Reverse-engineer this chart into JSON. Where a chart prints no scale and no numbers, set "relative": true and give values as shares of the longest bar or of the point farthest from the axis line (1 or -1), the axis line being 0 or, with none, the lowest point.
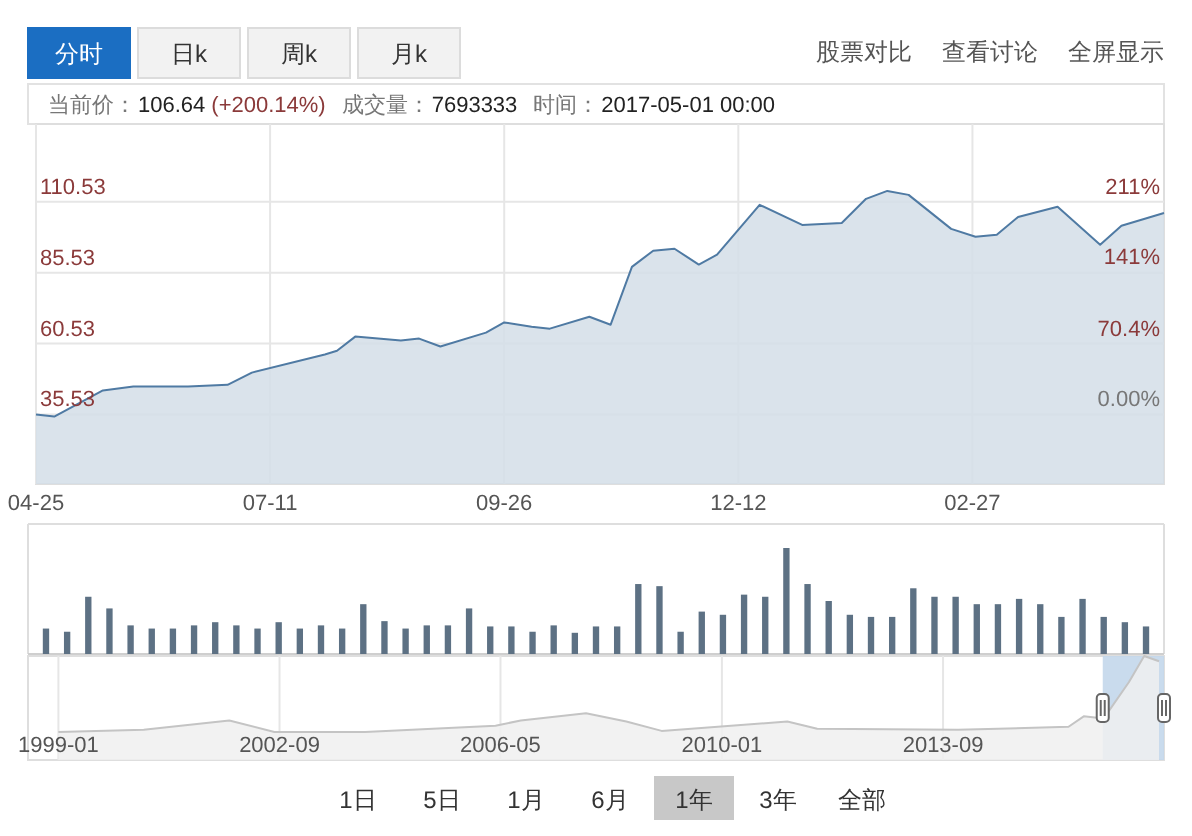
{
  "chart_data": [
    {
      "type": "other",
      "annotations": [
        "分时",
        "日k",
        "周k",
        "月k",
        "股票对比",
        "查看讨论",
        "全屏显示",
        "当前价：",
        "106.64",
        "(+200.14%)",
        "成交量：",
        "7693333",
        "时间：",
        "2017-05-01 00:00"
      ]
    },
    {
      "type": "area",
      "grid": true,
      "x": [
        "2016-04-25",
        "2016-05-01",
        "2016-05-17",
        "2016-05-27",
        "2016-06-14",
        "2016-06-27",
        "2016-07-05",
        "2016-07-29",
        "2016-08-02",
        "2016-08-08",
        "2016-08-23",
        "2016-08-29",
        "2016-09-05",
        "2016-09-20",
        "2016-09-26",
        "2016-10-05",
        "2016-10-11",
        "2016-10-24",
        "2016-10-31",
        "2016-11-07",
        "2016-11-14",
        "2016-11-21",
        "2016-11-29",
        "2016-12-05",
        "2016-12-19",
        "2017-01-02",
        "2017-01-15",
        "2017-01-23",
        "2017-01-30",
        "2017-02-06",
        "2017-02-20",
        "2017-02-28",
        "2017-03-07",
        "2017-03-14",
        "2017-03-27",
        "2017-04-10",
        "2017-04-17",
        "2017-05-01"
      ],
      "series": [
        {
          "color": "#4f7aa3",
          "values": [
            35.5,
            34.8,
            44,
            45.4,
            45.4,
            46,
            50.3,
            56.7,
            58,
            63,
            61.6,
            62.3,
            59.5,
            64.4,
            68,
            66.5,
            65.8,
            70,
            67.2,
            87.6,
            93.3,
            94,
            88.4,
            91.9,
            109.5,
            102.4,
            103.1,
            111.6,
            114.4,
            113,
            101,
            98.2,
            98.9,
            105.2,
            108.8,
            95.4,
            102.1,
            106.6
          ]
        }
      ],
      "xlim": [
        "2016-04-25",
        "2017-05-01"
      ],
      "xticks": [
        {
          "value": "2016-04-25",
          "label": "04-25"
        },
        {
          "value": "2016-07-11",
          "label": "07-11"
        },
        {
          "value": "2016-09-26",
          "label": "09-26"
        },
        {
          "value": "2016-12-12",
          "label": "12-12"
        },
        {
          "value": "2017-02-27",
          "label": "02-27"
        }
      ],
      "ylim": [
        11,
        138
      ],
      "yticks": [
        35.53,
        60.53,
        85.53,
        110.53
      ],
      "y2lim": [
        -69.04,
        288.41
      ],
      "y2ticks": [
        {
          "value": 0,
          "label": "0.00%"
        },
        {
          "value": 70.4,
          "label": "70.4%"
        },
        {
          "value": 141,
          "label": "141%"
        },
        {
          "value": 211,
          "label": "211%"
        }
      ]
    },
    {
      "type": "bar",
      "relative": true,
      "color": "#5d7184",
      "categories": [
        null,
        null,
        null,
        null,
        null,
        null,
        null,
        null,
        null,
        null,
        null,
        null,
        null,
        null,
        null,
        null,
        null,
        null,
        null,
        null,
        null,
        null,
        null,
        null,
        null,
        null,
        null,
        null,
        null,
        null,
        null,
        null,
        null,
        null,
        null,
        null,
        null,
        null,
        null,
        null,
        null,
        null,
        null,
        null,
        null,
        null,
        null,
        null,
        null,
        null,
        null,
        null,
        null
      ],
      "values": [
        0.24,
        0.21,
        0.54,
        0.43,
        0.27,
        0.24,
        0.24,
        0.27,
        0.3,
        0.27,
        0.24,
        0.3,
        0.24,
        0.27,
        0.24,
        0.47,
        0.31,
        0.24,
        0.27,
        0.27,
        0.43,
        0.26,
        0.26,
        0.21,
        0.27,
        0.2,
        0.26,
        0.26,
        0.66,
        0.64,
        0.21,
        0.4,
        0.37,
        0.56,
        0.54,
        1,
        0.66,
        0.5,
        0.37,
        0.35,
        0.35,
        0.62,
        0.54,
        0.54,
        0.47,
        0.47,
        0.52,
        0.47,
        0.35,
        0.52,
        0.35,
        0.3,
        0.26
      ]
    },
    {
      "type": "area",
      "relative": true,
      "grid": "x",
      "color": "#c4c4c4",
      "x": [
        "1999-01",
        "2000-06",
        "2001-11",
        "2002-08",
        "2004-02",
        "2006-04",
        "2006-09",
        "2007-10",
        "2008-06",
        "2009-01",
        "2011-02",
        "2011-08",
        "2013-12",
        "2015-10",
        "2016-01",
        "2016-05",
        "2016-10",
        "2017-01",
        "2017-04"
      ],
      "values": [
        0.27,
        0.29,
        0.38,
        0.27,
        0.27,
        0.33,
        0.38,
        0.45,
        0.37,
        0.28,
        0.37,
        0.3,
        0.29,
        0.32,
        0.42,
        0.4,
        0.75,
        1,
        0.95
      ],
      "xlim": [
        "1998-07",
        "2017-05"
      ],
      "xticks": [
        {
          "value": "1999-01",
          "label": "1999-01"
        },
        {
          "value": "2002-09",
          "label": "2002-09"
        },
        {
          "value": "2006-05",
          "label": "2006-05"
        },
        {
          "value": "2010-01",
          "label": "2010-01"
        },
        {
          "value": "2013-09",
          "label": "2013-09"
        }
      ],
      "bands": [
        {
          "axis": "x",
          "from": "2016-04-25",
          "to": "2017-05-01",
          "color": "#c3d7eb"
        }
      ]
    },
    {
      "type": "other",
      "annotations": [
        "1日",
        "5日",
        "1月",
        "6月",
        "1年",
        "3年",
        "全部"
      ]
    }
  ]
}
